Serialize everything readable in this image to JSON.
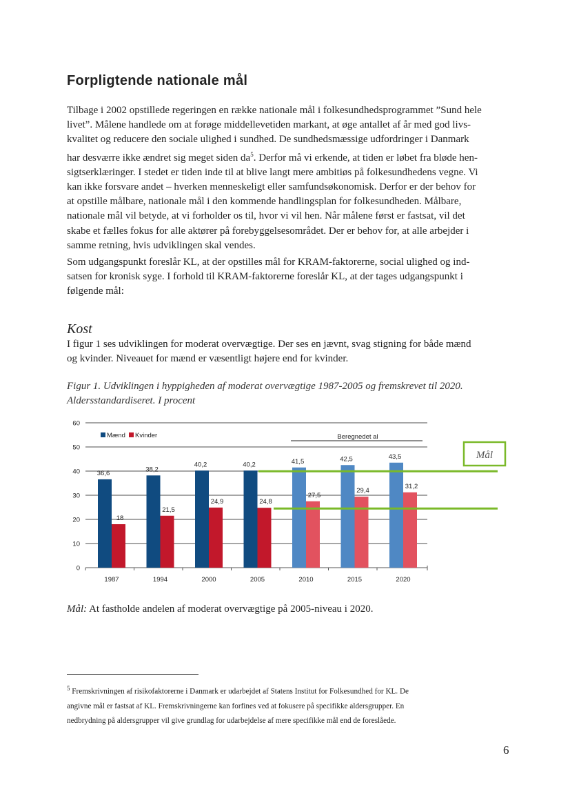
{
  "title": "Forpligtende nationale mål",
  "paragraph1": [
    "Tilbage i 2002 opstillede regeringen en række nationale mål i folkesundhedsprogrammet ”Sund hele",
    "livet”. Målene handlede om at forøge middellevetiden markant, at øge antallet af år med god livs-",
    "kvalitet og reducere den sociale ulighed i sundhed. De sundhedsmæssige udfordringer i Danmark",
    "har desværre ikke ændret sig meget siden da",
    "sigtserklæringer. I stedet er tiden inde til at blive langt mere ambitiøs på folkesundhedens vegne. Vi",
    "kan ikke forsvare andet – hverken menneskeligt eller samfundsøkonomisk. Derfor er der behov for",
    "at opstille målbare, nationale mål i den kommende handlingsplan for folkesundheden. Målbare,",
    "nationale mål vil betyde, at vi forholder os til, hvor vi vil hen. Når målene først er fastsat, vil det",
    "skabe et fælles fokus for alle aktører på forebyggelsesområdet. Der er behov for, at alle arbejder i",
    "samme retning, hvis udviklingen skal vendes."
  ],
  "footnote_ref": "5",
  "paragraph1_line4_rest": ". Derfor må vi erkende, at tiden er løbet fra bløde hen-",
  "paragraph2": [
    "Som udgangspunkt foreslår KL, at der opstilles mål for KRAM-faktorerne, social ulighed og ind-",
    "satsen for kronisk syge. I forhold til KRAM-faktorerne foreslår KL, at der tages udgangspunkt i",
    "følgende mål:"
  ],
  "section_heading": "Kost",
  "paragraph3": [
    "I figur 1 ses udviklingen for moderat overvægtige. Der ses en jævnt, svag stigning for både mænd",
    "og kvinder. Niveauet for mænd er væsentligt højere end for kvinder."
  ],
  "caption": [
    "Figur 1. Udviklingen i hyppigheden af moderat overvægtige 1987-2005 og fremskrevet til 2020.",
    "Aldersstandardiseret. I procent"
  ],
  "chart_data": {
    "type": "bar",
    "categories": [
      "1987",
      "1994",
      "2000",
      "2005",
      "2010",
      "2015",
      "2020"
    ],
    "series": [
      {
        "name": "Mænd",
        "values": [
          36.6,
          38.2,
          40.2,
          40.2,
          41.5,
          42.5,
          43.5
        ],
        "labels": [
          "36,6",
          "38,2",
          "40,2",
          "40,2",
          "41,5",
          "42,5",
          "43,5"
        ],
        "color": "#104b80",
        "forecast_color": "#4f88c4"
      },
      {
        "name": "Kvinder",
        "values": [
          18,
          21.5,
          24.9,
          24.8,
          27.5,
          29.4,
          31.2
        ],
        "labels": [
          "18",
          "21,5",
          "24,9",
          "24,8",
          "27,5",
          "29,4",
          "31,2"
        ],
        "color": "#c2182b",
        "forecast_color": "#e2525f"
      }
    ],
    "forecast_from_index": 4,
    "forecast_label": "Beregnedet al",
    "target_label": "Mål",
    "targets": [
      40.2,
      24.8
    ],
    "target_color": "#7ab929",
    "yticks": [
      0,
      10,
      20,
      30,
      40,
      50,
      60
    ],
    "ylim": [
      0,
      60
    ],
    "grid": true,
    "legend": "top-left"
  },
  "goal": {
    "label": "Mål:",
    "text": " At fastholde andelen af moderat overvægtige på 2005-niveau i 2020."
  },
  "footnote": [
    "Fremskrivningen af risikofaktorerne i Danmark er udarbejdet af Statens Institut for Folkesundhed for KL. De",
    "angivne mål er fastsat af KL. Fremskrivningerne kan forfines ved at fokusere på specifikke aldersgrupper. En",
    "nedbrydning på aldersgrupper vil give grundlag for udarbejdelse af mere specifikke mål end de foreslåede."
  ],
  "page_number": "6"
}
